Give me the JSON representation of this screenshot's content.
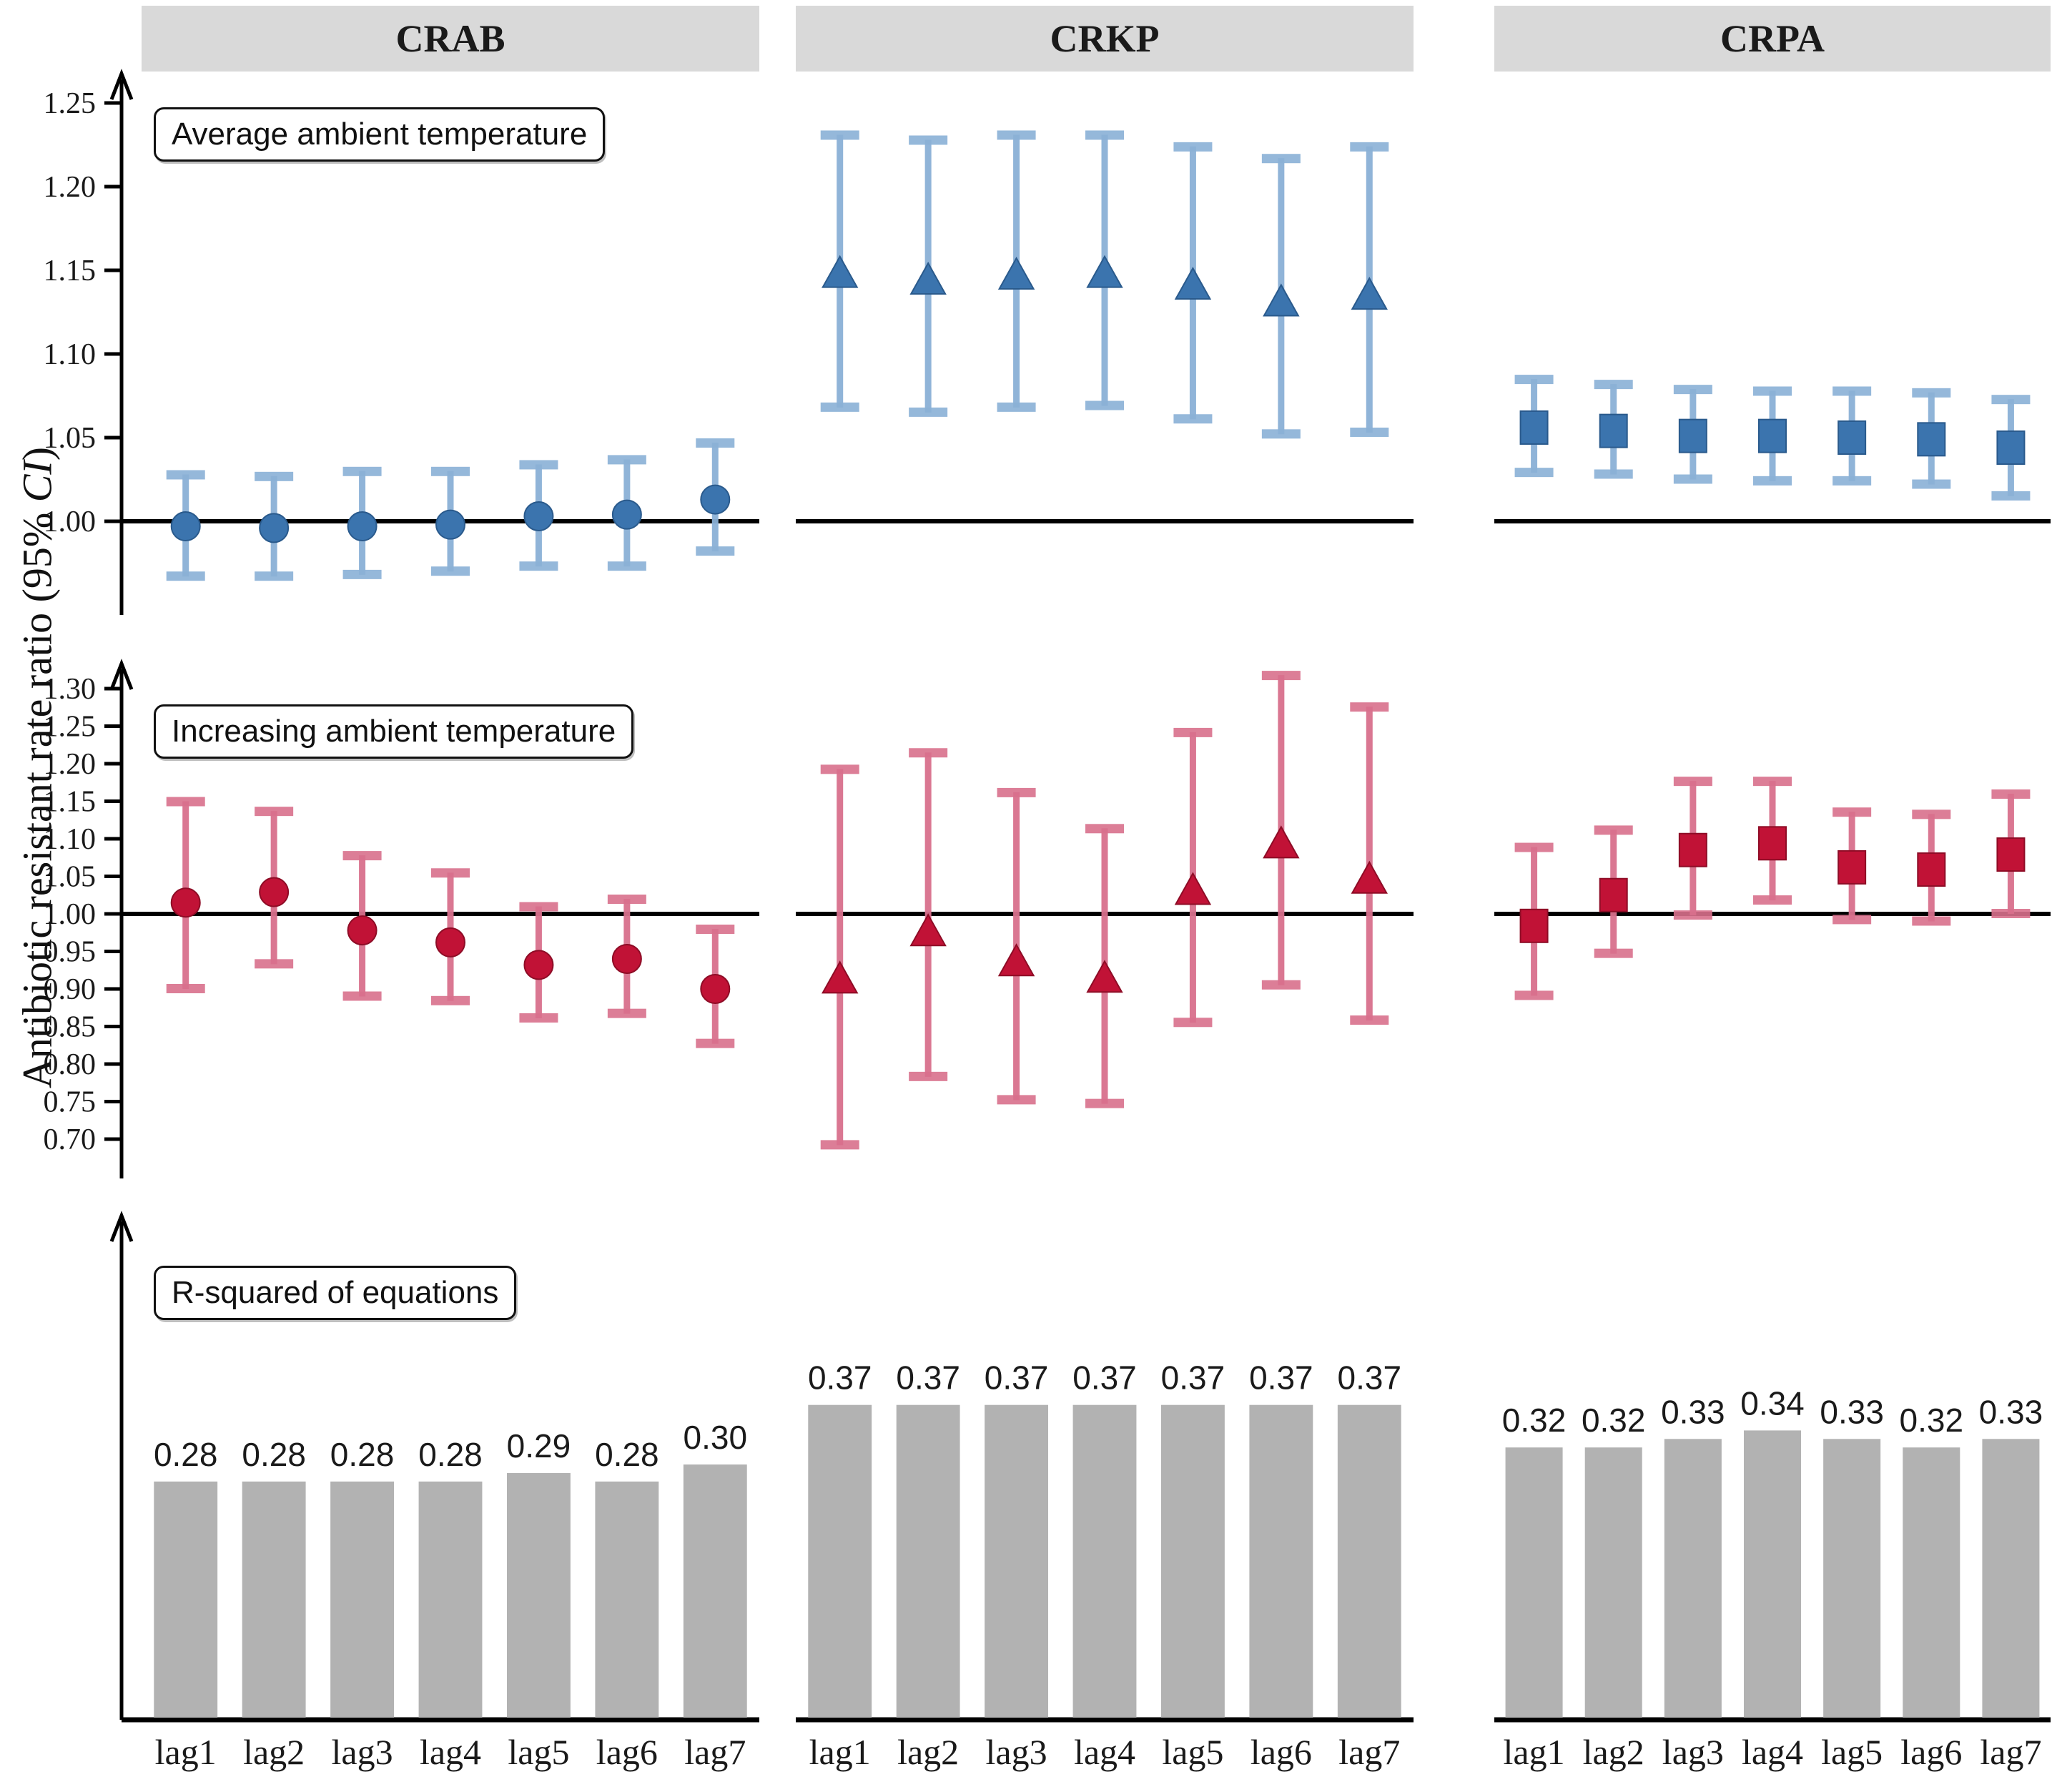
{
  "figure": {
    "ylabel_main": "Antibiotic resistant rate ratio (95% ",
    "ylabel_italic": "CI",
    "ylabel_close": ")",
    "panel_titles": [
      "CRAB",
      "CRKP",
      "CRPA"
    ]
  },
  "colors": {
    "header_bg": "#d9d9d9",
    "header_text": "#1a1a1a",
    "blue_marker": "#3b74ae",
    "blue_marker_edge": "#2a5a8c",
    "blue_errorbar": "#8ab0d6",
    "red_marker": "#c11236",
    "red_marker_edge": "#8e0c26",
    "red_errorbar": "#d8708c",
    "bar_fill": "#b2b2b2",
    "axis": "#000000",
    "text": "#1a1a1a"
  },
  "chart_data": [
    {
      "type": "scatter",
      "row_label": "Average ambient temperature",
      "categories": [
        "lag1",
        "lag2",
        "lag3",
        "lag4",
        "lag5",
        "lag6",
        "lag7"
      ],
      "ylim": [
        0.955,
        1.27
      ],
      "yticks": [
        1.25,
        1.2,
        1.15,
        1.1,
        1.05,
        1.0
      ],
      "ref_line": 1.0,
      "legend_position": "none",
      "grid": false,
      "series": [
        {
          "name": "CRAB",
          "marker": "circle",
          "est": [
            0.997,
            0.996,
            0.997,
            0.998,
            1.003,
            1.004,
            1.013
          ],
          "lo": [
            0.967,
            0.967,
            0.968,
            0.97,
            0.973,
            0.973,
            0.982
          ],
          "hi": [
            1.028,
            1.027,
            1.03,
            1.03,
            1.034,
            1.037,
            1.047
          ]
        },
        {
          "name": "CRKP",
          "marker": "triangle",
          "est": [
            1.148,
            1.144,
            1.147,
            1.148,
            1.141,
            1.131,
            1.135
          ],
          "lo": [
            1.068,
            1.065,
            1.068,
            1.069,
            1.061,
            1.052,
            1.053
          ],
          "hi": [
            1.231,
            1.228,
            1.231,
            1.231,
            1.224,
            1.217,
            1.224
          ]
        },
        {
          "name": "CRPA",
          "marker": "square",
          "est": [
            1.056,
            1.054,
            1.051,
            1.051,
            1.05,
            1.049,
            1.044
          ],
          "lo": [
            1.029,
            1.028,
            1.025,
            1.024,
            1.024,
            1.022,
            1.015
          ],
          "hi": [
            1.085,
            1.082,
            1.079,
            1.078,
            1.078,
            1.077,
            1.073
          ]
        }
      ]
    },
    {
      "type": "scatter",
      "row_label": "Increasing ambient temperature",
      "categories": [
        "lag1",
        "lag2",
        "lag3",
        "lag4",
        "lag5",
        "lag6",
        "lag7"
      ],
      "ylim": [
        0.65,
        1.345
      ],
      "yticks": [
        1.3,
        1.25,
        1.2,
        1.15,
        1.1,
        1.05,
        1.0,
        0.95,
        0.9,
        0.85,
        0.8,
        0.75,
        0.7
      ],
      "ref_line": 1.0,
      "legend_position": "none",
      "grid": false,
      "series": [
        {
          "name": "CRAB",
          "marker": "circle",
          "est": [
            1.015,
            1.029,
            0.978,
            0.962,
            0.932,
            0.94,
            0.9
          ],
          "lo": [
            0.9,
            0.933,
            0.89,
            0.884,
            0.861,
            0.867,
            0.827
          ],
          "hi": [
            1.15,
            1.137,
            1.078,
            1.055,
            1.01,
            1.02,
            0.98
          ]
        },
        {
          "name": "CRKP",
          "marker": "triangle",
          "est": [
            0.913,
            0.976,
            0.936,
            0.914,
            1.031,
            1.093,
            1.046
          ],
          "lo": [
            0.692,
            0.783,
            0.752,
            0.747,
            0.855,
            0.905,
            0.858
          ],
          "hi": [
            1.193,
            1.215,
            1.162,
            1.114,
            1.242,
            1.318,
            1.276
          ]
        },
        {
          "name": "CRPA",
          "marker": "square",
          "est": [
            0.984,
            1.025,
            1.085,
            1.094,
            1.062,
            1.059,
            1.079
          ],
          "lo": [
            0.891,
            0.947,
            0.998,
            1.018,
            0.992,
            0.99,
            1.0
          ],
          "hi": [
            1.089,
            1.112,
            1.177,
            1.177,
            1.136,
            1.133,
            1.16
          ]
        }
      ]
    },
    {
      "type": "bar",
      "row_label": "R-squared of equations",
      "categories": [
        "lag1",
        "lag2",
        "lag3",
        "lag4",
        "lag5",
        "lag6",
        "lag7"
      ],
      "ylim": [
        0,
        0.42
      ],
      "grid": false,
      "series": [
        {
          "name": "CRAB",
          "values": [
            0.28,
            0.28,
            0.28,
            0.28,
            0.29,
            0.28,
            0.3
          ]
        },
        {
          "name": "CRKP",
          "values": [
            0.37,
            0.37,
            0.37,
            0.37,
            0.37,
            0.37,
            0.37
          ]
        },
        {
          "name": "CRPA",
          "values": [
            0.32,
            0.32,
            0.33,
            0.34,
            0.33,
            0.32,
            0.33
          ]
        }
      ]
    }
  ]
}
